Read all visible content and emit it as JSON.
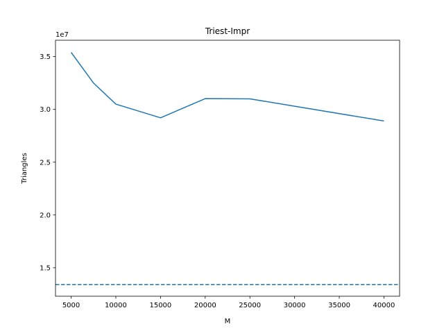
{
  "chart_data": {
    "type": "line",
    "title": "Triest-Impr",
    "xlabel": "M",
    "ylabel": "Triangles",
    "y_offset_label": "1e7",
    "x": [
      5000,
      7500,
      10000,
      15000,
      20000,
      25000,
      40000
    ],
    "series": [
      {
        "values": [
          35400000,
          32500000,
          30500000,
          29200000,
          31020000,
          31000000,
          28900000
        ],
        "color": "#1f77b4",
        "style": "solid"
      }
    ],
    "reference_line": {
      "value": 13400000,
      "color": "#1f77b4",
      "style": "dashed"
    },
    "xlim": [
      3250,
      41750
    ],
    "ylim": [
      12300000,
      36550000
    ],
    "x_ticks": [
      5000,
      10000,
      15000,
      20000,
      25000,
      30000,
      35000,
      40000
    ],
    "x_tick_labels": [
      "5000",
      "10000",
      "15000",
      "20000",
      "25000",
      "30000",
      "35000",
      "40000"
    ],
    "y_ticks": [
      15000000,
      20000000,
      25000000,
      30000000,
      35000000
    ],
    "y_tick_labels": [
      "1.5",
      "2.0",
      "2.5",
      "3.0",
      "3.5"
    ],
    "grid": false,
    "legend": "none"
  }
}
